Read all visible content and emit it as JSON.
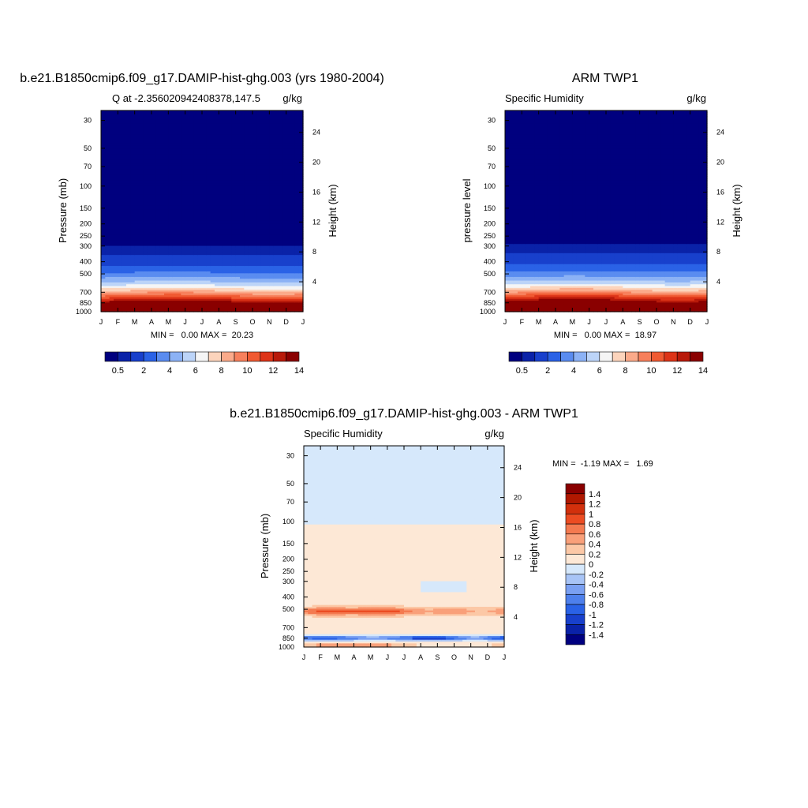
{
  "colors": {
    "cmap": [
      "#00007f",
      "#0a22a8",
      "#1840cc",
      "#2a62e6",
      "#5a8cf0",
      "#8cb2f5",
      "#bcd4f8",
      "#f5f5f5",
      "#fcd4bc",
      "#fbaa8a",
      "#f7805c",
      "#f05a32",
      "#dd3418",
      "#b81a0a",
      "#8a0000"
    ],
    "diff_cmap": [
      "#000080",
      "#0a22a8",
      "#1840cc",
      "#2a62e6",
      "#4e80ec",
      "#7aa0f2",
      "#a8c4f6",
      "#d6e8fb",
      "#fde8d6",
      "#fcc8a6",
      "#f9a07a",
      "#f47a50",
      "#ec4c22",
      "#d2300c",
      "#b01800",
      "#8a0000"
    ]
  },
  "chart_data": [
    {
      "type": "heatmap",
      "id": "model",
      "title": "b.e21.B1850cmip6.f09_g17.DAMIP-hist-ghg.003 (yrs 1980-2004)",
      "left_label": "Q at -2.356020942408378,147.5",
      "right_label": "g/kg",
      "xlabel": "",
      "ylabel": "Pressure (mb)",
      "ylabel_right": "Height (km)",
      "x_tick_labels": [
        "J",
        "F",
        "M",
        "A",
        "M",
        "J",
        "J",
        "A",
        "S",
        "O",
        "N",
        "D",
        "J"
      ],
      "y_axis": "pressure (log)",
      "ylim": [
        1000,
        25
      ],
      "y_ticks": [
        30,
        50,
        70,
        100,
        150,
        200,
        250,
        300,
        400,
        500,
        700,
        850,
        1000
      ],
      "y_right_ticks": [
        4,
        8,
        12,
        16,
        20,
        24
      ],
      "stats": "MIN =   0.00 MAX =  20.23",
      "min": 0.0,
      "max": 20.23,
      "profile": {
        "pressure": [
          25,
          250,
          300,
          400,
          500,
          600,
          700,
          800,
          850,
          900,
          1000
        ],
        "q": [
          0.0,
          0.1,
          0.5,
          1.5,
          3.2,
          5.5,
          8.5,
          12.0,
          14.0,
          15.5,
          18.0
        ]
      },
      "colorbar": {
        "orientation": "horizontal",
        "levels": [
          0.5,
          1,
          2,
          3,
          4,
          5,
          6,
          7,
          8,
          9,
          10,
          11,
          12,
          13,
          14
        ],
        "labels": [
          "0.5",
          "2",
          "4",
          "6",
          "8",
          "10",
          "12",
          "14"
        ]
      }
    },
    {
      "type": "heatmap",
      "id": "obs",
      "title": "ARM TWP1",
      "left_label": "Specific Humidity",
      "right_label": "g/kg",
      "xlabel": "",
      "ylabel": "pressure level",
      "ylabel_right": "Height (km)",
      "x_tick_labels": [
        "J",
        "F",
        "M",
        "A",
        "M",
        "J",
        "J",
        "A",
        "S",
        "O",
        "N",
        "D",
        "J"
      ],
      "y_axis": "pressure (log)",
      "ylim": [
        1000,
        25
      ],
      "y_ticks": [
        30,
        50,
        70,
        100,
        150,
        200,
        250,
        300,
        400,
        500,
        700,
        850,
        1000
      ],
      "y_right_ticks": [
        4,
        8,
        12,
        16,
        20,
        24
      ],
      "stats": "MIN =   0.00 MAX =  18.97",
      "min": 0.0,
      "max": 18.97,
      "profile": {
        "pressure": [
          25,
          250,
          300,
          400,
          500,
          600,
          700,
          800,
          850,
          900,
          1000
        ],
        "q": [
          0.0,
          0.1,
          0.6,
          1.6,
          3.4,
          5.8,
          9.0,
          12.5,
          14.3,
          15.8,
          17.5
        ]
      },
      "colorbar": {
        "orientation": "horizontal",
        "levels": [
          0.5,
          1,
          2,
          3,
          4,
          5,
          6,
          7,
          8,
          9,
          10,
          11,
          12,
          13,
          14
        ],
        "labels": [
          "0.5",
          "2",
          "4",
          "6",
          "8",
          "10",
          "12",
          "14"
        ]
      }
    },
    {
      "type": "heatmap",
      "id": "diff",
      "title": "b.e21.B1850cmip6.f09_g17.DAMIP-hist-ghg.003 - ARM TWP1",
      "left_label": "Specific Humidity",
      "right_label": "g/kg",
      "xlabel": "",
      "ylabel": "Pressure (mb)",
      "ylabel_right": "Height (km)",
      "x_tick_labels": [
        "J",
        "F",
        "M",
        "A",
        "M",
        "J",
        "J",
        "A",
        "S",
        "O",
        "N",
        "D",
        "J"
      ],
      "y_axis": "pressure (log)",
      "ylim": [
        1000,
        25
      ],
      "y_ticks": [
        30,
        50,
        70,
        100,
        150,
        200,
        250,
        300,
        400,
        500,
        700,
        850,
        1000
      ],
      "y_right_ticks": [
        4,
        8,
        12,
        16,
        20,
        24
      ],
      "stats": "MIN =  -1.19 MAX =   1.69",
      "min": -1.19,
      "max": 1.69,
      "colorbar": {
        "orientation": "vertical",
        "levels": [
          -1.4,
          -1.2,
          -1,
          -0.8,
          -0.6,
          -0.4,
          -0.2,
          0,
          0.2,
          0.4,
          0.6,
          0.8,
          1,
          1.2,
          1.4
        ],
        "labels": [
          "-1.4",
          "-1.2",
          "-1",
          "-0.8",
          "-0.6",
          "-0.4",
          "-0.2",
          "0",
          "0.2",
          "0.4",
          "0.6",
          "0.8",
          "1",
          "1.2",
          "1.4"
        ]
      }
    }
  ]
}
